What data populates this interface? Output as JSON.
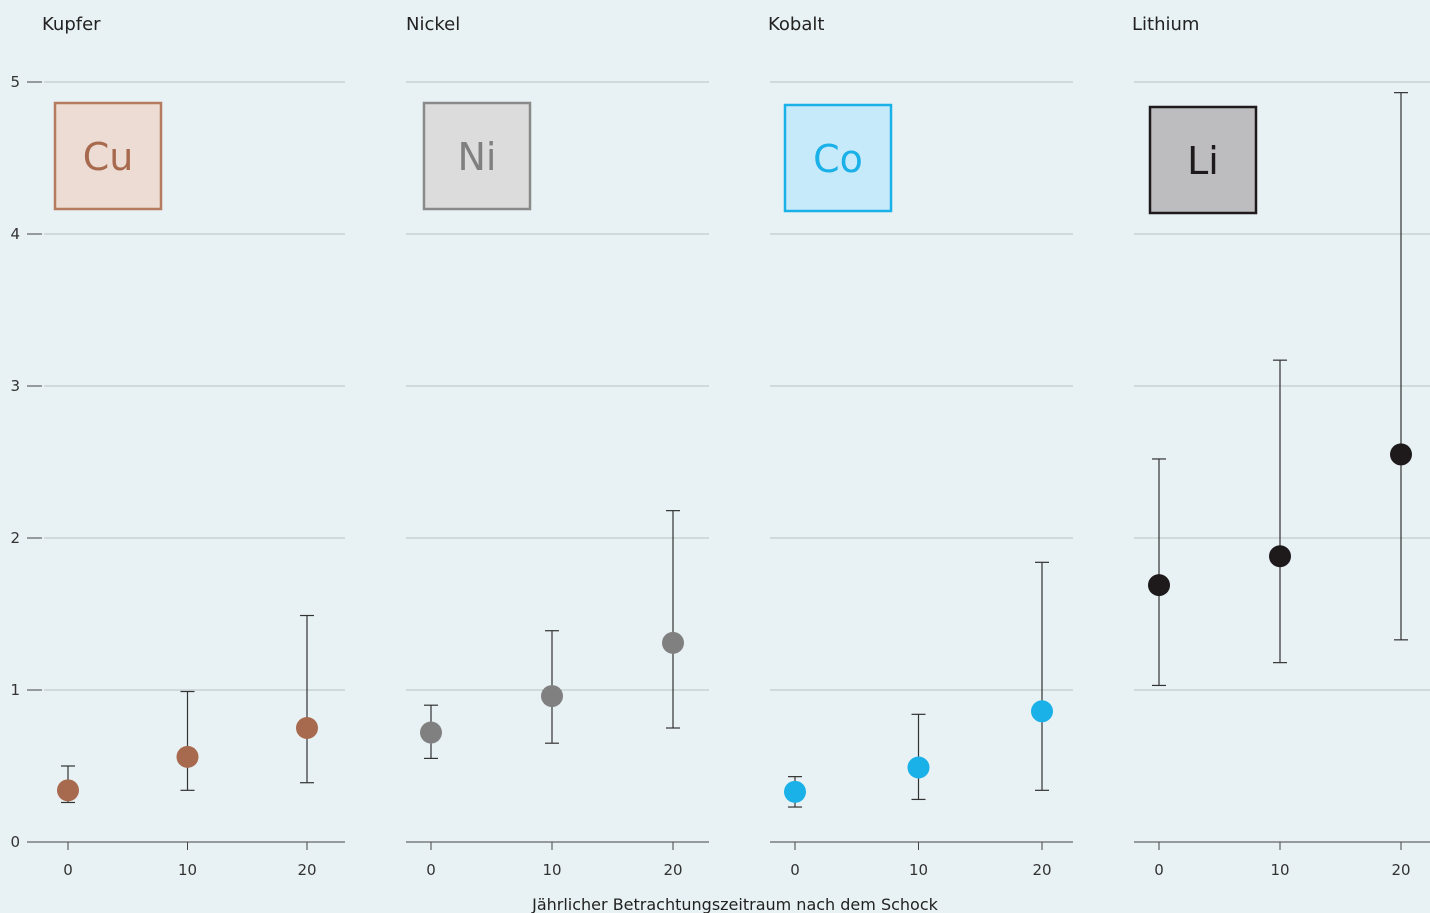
{
  "chart_data": {
    "type": "scatter",
    "xlabel": "Jährlicher Betrachtungszeitraum nach dem Schock",
    "ylim": [
      0,
      5
    ],
    "yticks": [
      0,
      1,
      2,
      3,
      4,
      5
    ],
    "xticks": [
      0,
      10,
      20
    ],
    "grid": true,
    "panels": [
      {
        "title": "Kupfer",
        "symbol": "Cu",
        "color": "#a86a4e",
        "badge_fill": "#ecdcd4",
        "badge_stroke": "#b57a60",
        "badge_text": "#a86a4e",
        "points": [
          {
            "x": 0,
            "y": 0.34,
            "low": 0.26,
            "high": 0.5
          },
          {
            "x": 10,
            "y": 0.56,
            "low": 0.34,
            "high": 0.99
          },
          {
            "x": 20,
            "y": 0.75,
            "low": 0.39,
            "high": 1.49
          }
        ]
      },
      {
        "title": "Nickel",
        "symbol": "Ni",
        "color": "#808080",
        "badge_fill": "#dcdcdc",
        "badge_stroke": "#8a8a8a",
        "badge_text": "#808080",
        "points": [
          {
            "x": 0,
            "y": 0.72,
            "low": 0.55,
            "high": 0.9
          },
          {
            "x": 10,
            "y": 0.96,
            "low": 0.65,
            "high": 1.39
          },
          {
            "x": 20,
            "y": 1.31,
            "low": 0.75,
            "high": 2.18
          }
        ]
      },
      {
        "title": "Kobalt",
        "symbol": "Co",
        "color": "#1ab0e8",
        "badge_fill": "#c7eafa",
        "badge_stroke": "#1ab0e8",
        "badge_text": "#1ab0e8",
        "points": [
          {
            "x": 0,
            "y": 0.33,
            "low": 0.23,
            "high": 0.43
          },
          {
            "x": 10,
            "y": 0.49,
            "low": 0.28,
            "high": 0.84
          },
          {
            "x": 20,
            "y": 0.86,
            "low": 0.34,
            "high": 1.84
          }
        ]
      },
      {
        "title": "Lithium",
        "symbol": "Li",
        "color": "#1e1a1c",
        "badge_fill": "#bdbdbf",
        "badge_stroke": "#1e1a1c",
        "badge_text": "#1e1a1c",
        "points": [
          {
            "x": 0,
            "y": 1.69,
            "low": 1.03,
            "high": 2.52
          },
          {
            "x": 10,
            "y": 1.88,
            "low": 1.18,
            "high": 3.17
          },
          {
            "x": 20,
            "y": 2.55,
            "low": 1.33,
            "high": 4.93
          }
        ]
      }
    ]
  }
}
